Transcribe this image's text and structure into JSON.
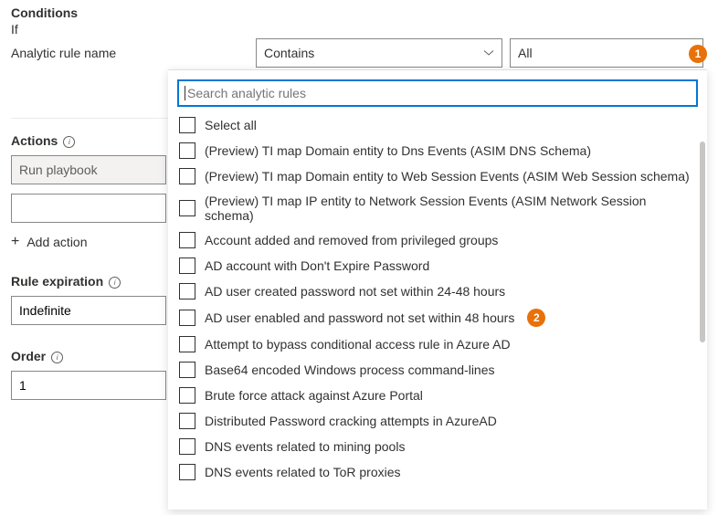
{
  "conditions": {
    "title": "Conditions",
    "if_label": "If",
    "rule_name_label": "Analytic rule name",
    "operator_value": "Contains",
    "match_value": "All"
  },
  "actions": {
    "title": "Actions",
    "run_playbook_value": "Run playbook",
    "add_action_label": "Add action"
  },
  "expiration": {
    "title": "Rule expiration",
    "value": "Indefinite"
  },
  "order": {
    "title": "Order",
    "value": "1"
  },
  "dropdown": {
    "search_placeholder": "Search analytic rules",
    "select_all": "Select all",
    "items": [
      "(Preview) TI map Domain entity to Dns Events (ASIM DNS Schema)",
      "(Preview) TI map Domain entity to Web Session Events (ASIM Web Session schema)",
      "(Preview) TI map IP entity to Network Session Events (ASIM Network Session schema)",
      "Account added and removed from privileged groups",
      "AD account with Don't Expire Password",
      "AD user created password not set within 24-48 hours",
      "AD user enabled and password not set within 48 hours",
      "Attempt to bypass conditional access rule in Azure AD",
      "Base64 encoded Windows process command-lines",
      "Brute force attack against Azure Portal",
      "Distributed Password cracking attempts in AzureAD",
      "DNS events related to mining pools",
      "DNS events related to ToR proxies"
    ]
  },
  "markers": {
    "one": "1",
    "two": "2"
  }
}
